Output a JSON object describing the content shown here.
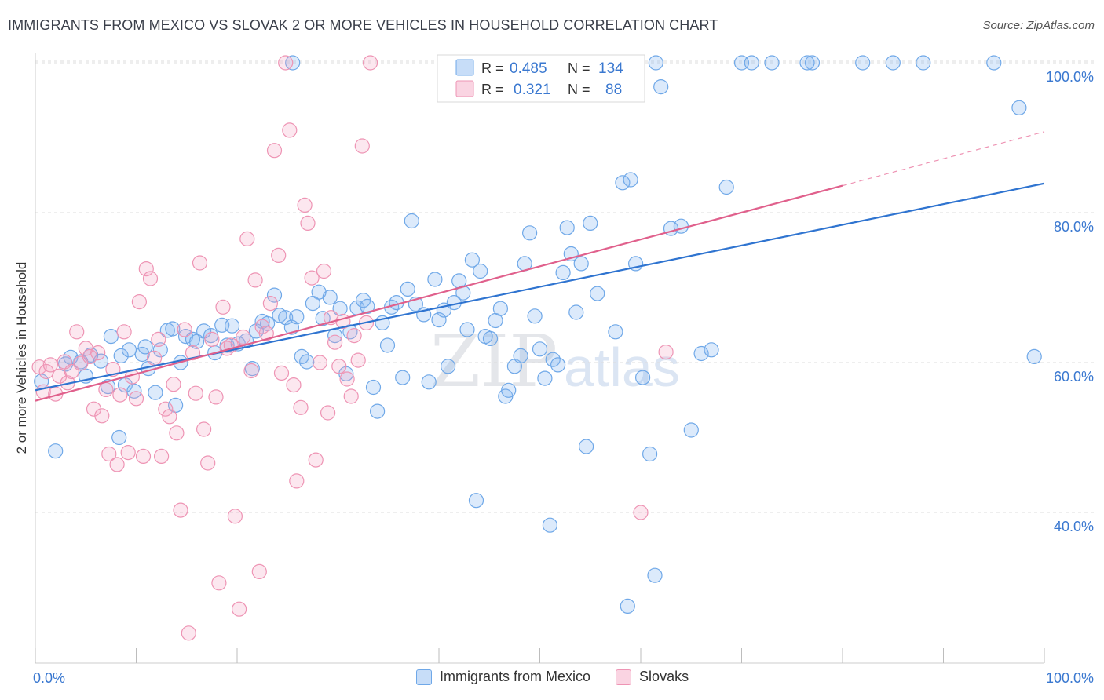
{
  "title": "IMMIGRANTS FROM MEXICO VS SLOVAK 2 OR MORE VEHICLES IN HOUSEHOLD CORRELATION CHART",
  "source": "Source: ZipAtlas.com",
  "watermark": {
    "zip": "ZIP",
    "atlas": "atlas"
  },
  "colors": {
    "blue": "#6fa8e8",
    "blue_fill": "rgba(130,180,240,0.28)",
    "blue_line": "#2f74d0",
    "pink": "#ee94b4",
    "pink_fill": "rgba(245,160,190,0.25)",
    "pink_line": "#e0608c",
    "axis_text": "#3a78d0"
  },
  "legend_top": [
    {
      "r_label": "R =",
      "r_value": "0.485",
      "n_label": "N =",
      "n_value": "134"
    },
    {
      "r_label": "R =",
      "r_value": "0.321",
      "n_label": "N =",
      "n_value": "88"
    }
  ],
  "legend_bottom": [
    "Immigrants from Mexico",
    "Slovaks"
  ],
  "chart_data": {
    "type": "scatter",
    "title": "IMMIGRANTS FROM MEXICO VS SLOVAK 2 OR MORE VEHICLES IN HOUSEHOLD CORRELATION CHART",
    "xlabel": "",
    "ylabel": "2 or more Vehicles in Household",
    "xlim": [
      0,
      100
    ],
    "ylim": [
      20,
      102
    ],
    "x_tick_labels": [
      "0.0%",
      "100.0%"
    ],
    "y_ticks": [
      40,
      60,
      80,
      100
    ],
    "y_tick_labels": [
      "40.0%",
      "60.0%",
      "80.0%",
      "100.0%"
    ],
    "grid": true,
    "series": [
      {
        "name": "Immigrants from Mexico",
        "R": 0.485,
        "N": 134,
        "trend": {
          "x": [
            0,
            100
          ],
          "y": [
            56.3,
            83.9
          ]
        },
        "points": [
          [
            0.6,
            57.5
          ],
          [
            2,
            48.2
          ],
          [
            3,
            59.8
          ],
          [
            3.5,
            60.7
          ],
          [
            4.5,
            60.1
          ],
          [
            5,
            58.2
          ],
          [
            5.5,
            61
          ],
          [
            6.5,
            60.2
          ],
          [
            7.2,
            56.8
          ],
          [
            7.5,
            63.5
          ],
          [
            8.5,
            60.9
          ],
          [
            8.3,
            50
          ],
          [
            8.9,
            57
          ],
          [
            9.3,
            61.7
          ],
          [
            9.8,
            56.2
          ],
          [
            10.6,
            61.1
          ],
          [
            10.9,
            62.1
          ],
          [
            11.2,
            59.2
          ],
          [
            11.9,
            56
          ],
          [
            12.4,
            61.7
          ],
          [
            13.1,
            64.3
          ],
          [
            13.6,
            64.5
          ],
          [
            13.9,
            54.3
          ],
          [
            14.4,
            60
          ],
          [
            14.9,
            63.5
          ],
          [
            15.6,
            63.1
          ],
          [
            16,
            62.8
          ],
          [
            16.7,
            64.2
          ],
          [
            17.4,
            63.6
          ],
          [
            17.8,
            61.3
          ],
          [
            18.5,
            65
          ],
          [
            19,
            62.3
          ],
          [
            19.5,
            64.9
          ],
          [
            20.1,
            62.5
          ],
          [
            20.9,
            62.9
          ],
          [
            21.5,
            59.2
          ],
          [
            21.9,
            64.2
          ],
          [
            22.5,
            65.5
          ],
          [
            23,
            65.2
          ],
          [
            23.7,
            69
          ],
          [
            24.2,
            66.3
          ],
          [
            24.8,
            66
          ],
          [
            25.4,
            64.7
          ],
          [
            25.9,
            66.1
          ],
          [
            26.4,
            60.8
          ],
          [
            26.9,
            60.1
          ],
          [
            27.5,
            67.9
          ],
          [
            28.1,
            69.4
          ],
          [
            28.5,
            65.9
          ],
          [
            29.2,
            68.7
          ],
          [
            29.7,
            63.6
          ],
          [
            30.2,
            67.2
          ],
          [
            30.8,
            58.5
          ],
          [
            31.2,
            64.1
          ],
          [
            31.9,
            67.3
          ],
          [
            32.5,
            68.3
          ],
          [
            32.9,
            67.5
          ],
          [
            33.5,
            56.7
          ],
          [
            33.9,
            53.5
          ],
          [
            34.4,
            65.3
          ],
          [
            34.9,
            62.3
          ],
          [
            35.3,
            67.4
          ],
          [
            35.8,
            68
          ],
          [
            36.4,
            58
          ],
          [
            36.9,
            69.8
          ],
          [
            37.3,
            78.9
          ],
          [
            37.7,
            67.8
          ],
          [
            38.5,
            66.4
          ],
          [
            39,
            57.4
          ],
          [
            39.6,
            71.1
          ],
          [
            40,
            65.7
          ],
          [
            40.5,
            67
          ],
          [
            40.9,
            59.5
          ],
          [
            41.5,
            68
          ],
          [
            42,
            70.9
          ],
          [
            42.4,
            69.3
          ],
          [
            42.8,
            64.4
          ],
          [
            43.3,
            73.7
          ],
          [
            43.7,
            41.6
          ],
          [
            44.1,
            72.2
          ],
          [
            44.6,
            63.5
          ],
          [
            45.1,
            63.2
          ],
          [
            45.6,
            65.6
          ],
          [
            46.1,
            67.2
          ],
          [
            46.6,
            55.5
          ],
          [
            46.9,
            56.3
          ],
          [
            47.5,
            59.5
          ],
          [
            48.1,
            60.9
          ],
          [
            48.5,
            73.2
          ],
          [
            49,
            77.3
          ],
          [
            49.5,
            66.2
          ],
          [
            50,
            61.8
          ],
          [
            50.5,
            57.9
          ],
          [
            51,
            38.3
          ],
          [
            51.3,
            60.4
          ],
          [
            51.8,
            59.7
          ],
          [
            52.3,
            72
          ],
          [
            52.7,
            78
          ],
          [
            53.1,
            74.5
          ],
          [
            53.6,
            66.7
          ],
          [
            54.1,
            73.2
          ],
          [
            54.6,
            48.8
          ],
          [
            55,
            78.6
          ],
          [
            55.7,
            69.2
          ],
          [
            57.5,
            64.1
          ],
          [
            58.2,
            84
          ],
          [
            58.7,
            27.5
          ],
          [
            59,
            84.4
          ],
          [
            59.5,
            73.2
          ],
          [
            60.2,
            58
          ],
          [
            60.9,
            47.8
          ],
          [
            61.4,
            31.6
          ],
          [
            62,
            96.8
          ],
          [
            63,
            77.9
          ],
          [
            64,
            78.2
          ],
          [
            65,
            51
          ],
          [
            66,
            61.2
          ],
          [
            67,
            61.7
          ],
          [
            68.5,
            83.4
          ],
          [
            70,
            100
          ],
          [
            73,
            100
          ],
          [
            77,
            100
          ],
          [
            82,
            100
          ],
          [
            85,
            100
          ],
          [
            88,
            100
          ],
          [
            95,
            100
          ],
          [
            97.5,
            94
          ],
          [
            99,
            60.8
          ],
          [
            45,
            100
          ],
          [
            53.5,
            100
          ],
          [
            71,
            100
          ],
          [
            76.5,
            100
          ],
          [
            61.5,
            100
          ],
          [
            25.5,
            100
          ]
        ]
      },
      {
        "name": "Slovaks",
        "R": 0.321,
        "N": 88,
        "trend": {
          "x": [
            0,
            80
          ],
          "y": [
            54.9,
            83.6
          ]
        },
        "trend_dashed": {
          "x": [
            80,
            100
          ],
          "y": [
            83.6,
            90.8
          ]
        },
        "points": [
          [
            0.4,
            59.4
          ],
          [
            0.8,
            56.1
          ],
          [
            1.1,
            58.8
          ],
          [
            1.5,
            59.7
          ],
          [
            2,
            55.8
          ],
          [
            2.4,
            58.2
          ],
          [
            2.9,
            60.1
          ],
          [
            3.2,
            57.3
          ],
          [
            3.6,
            58.8
          ],
          [
            4.1,
            64.1
          ],
          [
            4.5,
            59.9
          ],
          [
            5,
            61.9
          ],
          [
            5.4,
            60.8
          ],
          [
            5.8,
            53.8
          ],
          [
            6.2,
            61.3
          ],
          [
            6.6,
            52.9
          ],
          [
            7,
            56.4
          ],
          [
            7.3,
            47.8
          ],
          [
            7.7,
            59.1
          ],
          [
            8.1,
            46.4
          ],
          [
            8.4,
            55.7
          ],
          [
            8.8,
            64.1
          ],
          [
            9.2,
            48
          ],
          [
            9.6,
            58.1
          ],
          [
            10,
            55.2
          ],
          [
            10.3,
            68.1
          ],
          [
            10.7,
            47.5
          ],
          [
            11,
            72.5
          ],
          [
            11.4,
            71.2
          ],
          [
            11.8,
            60.6
          ],
          [
            12.2,
            63.1
          ],
          [
            12.5,
            47.5
          ],
          [
            12.9,
            53.8
          ],
          [
            13.3,
            52.8
          ],
          [
            13.7,
            57.1
          ],
          [
            14,
            50.6
          ],
          [
            14.4,
            40.3
          ],
          [
            14.8,
            64.4
          ],
          [
            15.2,
            23.9
          ],
          [
            15.6,
            61.3
          ],
          [
            15.9,
            55.9
          ],
          [
            16.3,
            73.3
          ],
          [
            16.7,
            51.1
          ],
          [
            17.1,
            46.6
          ],
          [
            17.5,
            63.1
          ],
          [
            17.9,
            55.4
          ],
          [
            18.2,
            30.6
          ],
          [
            18.6,
            67.4
          ],
          [
            19,
            61.9
          ],
          [
            19.4,
            62.3
          ],
          [
            19.8,
            39.5
          ],
          [
            20.2,
            27.1
          ],
          [
            20.6,
            63.4
          ],
          [
            21,
            76.5
          ],
          [
            21.4,
            58.9
          ],
          [
            21.8,
            71
          ],
          [
            22.2,
            32.1
          ],
          [
            22.5,
            64.8
          ],
          [
            22.9,
            63.9
          ],
          [
            23.3,
            67.9
          ],
          [
            23.7,
            88.3
          ],
          [
            24.1,
            74.3
          ],
          [
            24.4,
            58.6
          ],
          [
            24.8,
            100
          ],
          [
            25.2,
            91
          ],
          [
            25.6,
            57
          ],
          [
            25.9,
            44.2
          ],
          [
            26.3,
            54
          ],
          [
            26.7,
            81
          ],
          [
            27,
            78.6
          ],
          [
            27.4,
            71.3
          ],
          [
            27.8,
            47
          ],
          [
            28.2,
            60
          ],
          [
            28.6,
            72.2
          ],
          [
            29,
            53.3
          ],
          [
            29.3,
            66
          ],
          [
            29.7,
            62.7
          ],
          [
            30.1,
            59.5
          ],
          [
            30.5,
            65.5
          ],
          [
            30.9,
            57.8
          ],
          [
            31.3,
            55.5
          ],
          [
            31.6,
            63.6
          ],
          [
            32,
            60.3
          ],
          [
            32.4,
            88.9
          ],
          [
            32.8,
            65.3
          ],
          [
            33.2,
            100
          ],
          [
            60,
            40
          ],
          [
            62.5,
            61.4
          ]
        ]
      }
    ]
  }
}
